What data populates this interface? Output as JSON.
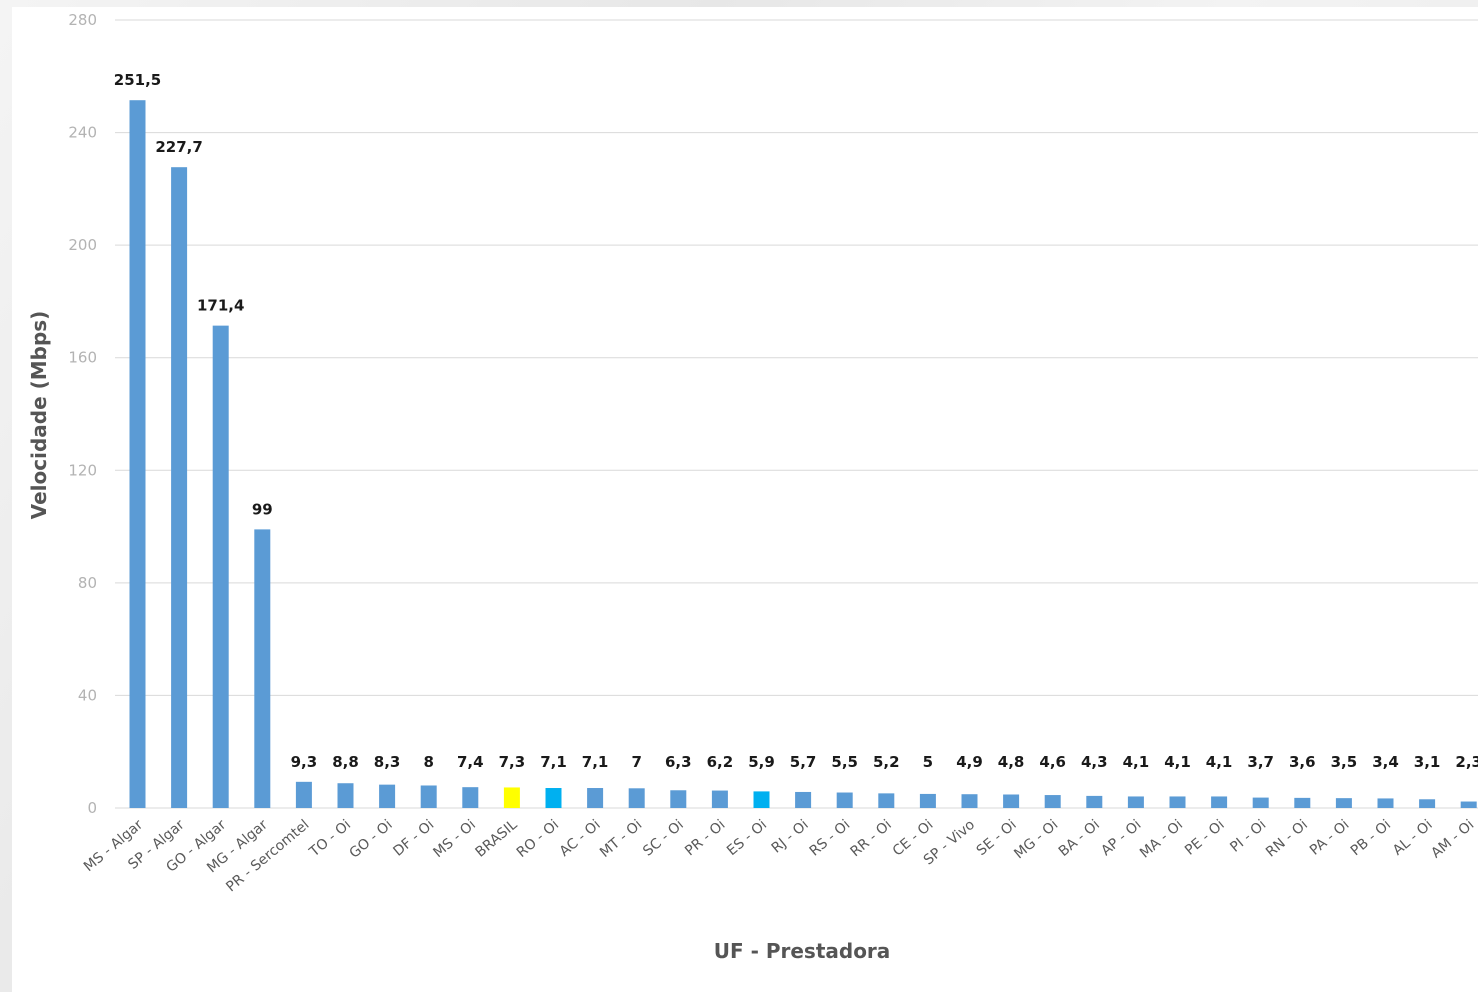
{
  "chart_data": {
    "type": "bar",
    "title": "",
    "xlabel": "UF - Prestadora",
    "ylabel": "Velocidade (Mbps)",
    "ylim": [
      0,
      280
    ],
    "yticks": [
      "0",
      "40",
      "80",
      "120",
      "160",
      "200",
      "240",
      "280"
    ],
    "grid": true,
    "legend": "none",
    "categories": [
      "MS - Algar",
      "SP - Algar",
      "GO - Algar",
      "MG - Algar",
      "PR - Sercomtel",
      "TO - Oi",
      "GO - Oi",
      "DF - Oi",
      "MS - Oi",
      "BRASIL",
      "RO - Oi",
      "AC - Oi",
      "MT - Oi",
      "SC - Oi",
      "PR - Oi",
      "ES - Oi",
      "RJ - Oi",
      "RS - Oi",
      "RR - Oi",
      "CE - Oi",
      "SP - Vivo",
      "SE - Oi",
      "MG - Oi",
      "BA - Oi",
      "AP - Oi",
      "MA - Oi",
      "PE - Oi",
      "PI - Oi",
      "RN - Oi",
      "PA - Oi",
      "PB - Oi",
      "AL - Oi",
      "AM - Oi"
    ],
    "values": [
      251.5,
      227.7,
      171.4,
      99,
      9.3,
      8.8,
      8.3,
      8,
      7.4,
      7.3,
      7.1,
      7.1,
      7,
      6.3,
      6.2,
      5.9,
      5.7,
      5.5,
      5.2,
      5,
      4.9,
      4.8,
      4.6,
      4.3,
      4.1,
      4.1,
      4.1,
      3.7,
      3.6,
      3.5,
      3.4,
      3.1,
      2.3
    ],
    "value_labels": [
      "251,5",
      "227,7",
      "171,4",
      "99",
      "9,3",
      "8,8",
      "8,3",
      "8",
      "7,4",
      "7,3",
      "7,1",
      "7,1",
      "7",
      "6,3",
      "6,2",
      "5,9",
      "5,7",
      "5,5",
      "5,2",
      "5",
      "4,9",
      "4,8",
      "4,6",
      "4,3",
      "4,1",
      "4,1",
      "4,1",
      "3,7",
      "3,6",
      "3,5",
      "3,4",
      "3,1",
      "2,3"
    ],
    "colors": {
      "default": "#5b9bd5",
      "BRASIL": "#ffff00",
      "RO - Oi": "#00b0f0",
      "ES - Oi": "#00b0f0"
    }
  }
}
